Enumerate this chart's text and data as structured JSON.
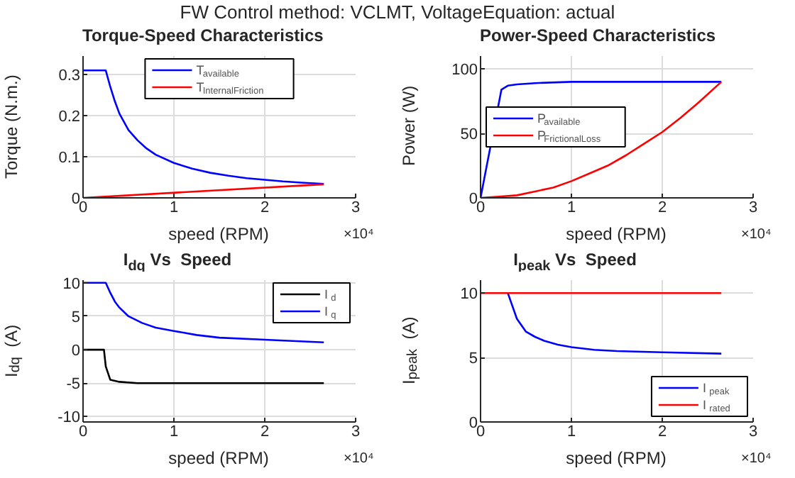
{
  "chart_data": [
    {
      "type": "line",
      "title": "Torque-Speed Characteristics",
      "xlabel": "speed (RPM)",
      "ylabel": "Torque (N.m.)",
      "annotations": [
        "FW Control method: VCLMT, VoltageEquation: actual",
        "×10⁴"
      ],
      "xlim": [
        0,
        3
      ],
      "xticks": [
        0,
        1,
        2,
        3
      ],
      "ylim": [
        0,
        0.345
      ],
      "yticks": [
        0,
        0.1,
        0.2,
        0.3
      ],
      "grid": true,
      "legend": "top",
      "series": [
        {
          "name": "T$_{available}$",
          "color": "#0000ff",
          "x": [
            0,
            0.25,
            0.3,
            0.35,
            0.4,
            0.5,
            0.6,
            0.7,
            0.8,
            1.0,
            1.2,
            1.4,
            1.6,
            1.8,
            2.0,
            2.2,
            2.4,
            2.65
          ],
          "values": [
            0.31,
            0.31,
            0.27,
            0.235,
            0.205,
            0.165,
            0.14,
            0.12,
            0.105,
            0.085,
            0.071,
            0.061,
            0.054,
            0.048,
            0.044,
            0.04,
            0.037,
            0.034
          ]
        },
        {
          "name": "T$_{InternalFriction}$",
          "color": "#ff0000",
          "x": [
            0,
            2.65
          ],
          "values": [
            0,
            0.033
          ]
        }
      ]
    },
    {
      "type": "line",
      "title": "Power-Speed Characteristics",
      "xlabel": "speed (RPM)",
      "ylabel": "Power (W)",
      "annotations": [
        "×10⁴"
      ],
      "xlim": [
        0,
        3
      ],
      "xticks": [
        0,
        1,
        2,
        3
      ],
      "ylim": [
        0,
        110
      ],
      "yticks": [
        0,
        50,
        100
      ],
      "grid": true,
      "legend": "left",
      "series": [
        {
          "name": "P$_{available}$",
          "color": "#0000ff",
          "x": [
            0,
            0.23,
            0.3,
            0.4,
            0.6,
            1.0,
            2.65
          ],
          "values": [
            0,
            84,
            87,
            88,
            89,
            90,
            90
          ]
        },
        {
          "name": "P$_{FrictionalLoss}$",
          "color": "#ff0000",
          "x": [
            0,
            0.2,
            0.4,
            0.6,
            0.8,
            1.0,
            1.2,
            1.4,
            1.6,
            1.8,
            2.0,
            2.2,
            2.4,
            2.65
          ],
          "values": [
            0,
            1,
            2,
            5,
            8,
            13,
            19,
            25,
            33,
            42,
            51,
            62,
            74,
            90
          ]
        }
      ]
    },
    {
      "type": "line",
      "title": "I$_{dq}$ Vs  Speed",
      "xlabel": "speed (RPM)",
      "ylabel": "I$_{dq}$  (A)",
      "annotations": [
        "×10⁴"
      ],
      "xlim": [
        0,
        3
      ],
      "xticks": [
        0,
        1,
        2,
        3
      ],
      "ylim": [
        -10.8,
        10.4
      ],
      "yticks": [
        -10,
        -5,
        0,
        5,
        10
      ],
      "grid": true,
      "legend": "top right",
      "series": [
        {
          "name": "I$_{d}$",
          "color": "#000000",
          "x": [
            0,
            0.23,
            0.25,
            0.3,
            0.4,
            0.6,
            1.0,
            2.65
          ],
          "values": [
            0,
            0,
            -2.5,
            -4.5,
            -4.8,
            -5,
            -5,
            -5
          ]
        },
        {
          "name": "I$_{q}$",
          "color": "#0000ff",
          "x": [
            0,
            0.25,
            0.3,
            0.35,
            0.4,
            0.5,
            0.65,
            0.8,
            1.0,
            1.25,
            1.5,
            2.0,
            2.65
          ],
          "values": [
            10,
            10,
            8.5,
            7.2,
            6.3,
            5,
            4,
            3.3,
            2.8,
            2.2,
            1.8,
            1.5,
            1.1
          ]
        }
      ]
    },
    {
      "type": "line",
      "title": "I$_{peak}$ Vs  Speed",
      "xlabel": "speed (RPM)",
      "ylabel": "I$_{peak}$  (A)",
      "annotations": [
        "×10⁴"
      ],
      "xlim": [
        0,
        3
      ],
      "xticks": [
        0,
        1,
        2,
        3
      ],
      "ylim": [
        0,
        11
      ],
      "yticks": [
        0,
        5,
        10
      ],
      "grid": true,
      "legend": "bottom right",
      "series": [
        {
          "name": "I$_{peak}$",
          "color": "#0000ff",
          "x": [
            0.3,
            0.4,
            0.5,
            0.6,
            0.7,
            0.85,
            1.0,
            1.25,
            1.5,
            2.0,
            2.65
          ],
          "values": [
            10,
            8,
            7,
            6.6,
            6.3,
            6,
            5.8,
            5.6,
            5.5,
            5.4,
            5.3
          ]
        },
        {
          "name": "I$_{rated}$",
          "color": "#ff0000",
          "x": [
            0,
            2.65
          ],
          "values": [
            10,
            10
          ]
        }
      ]
    }
  ]
}
